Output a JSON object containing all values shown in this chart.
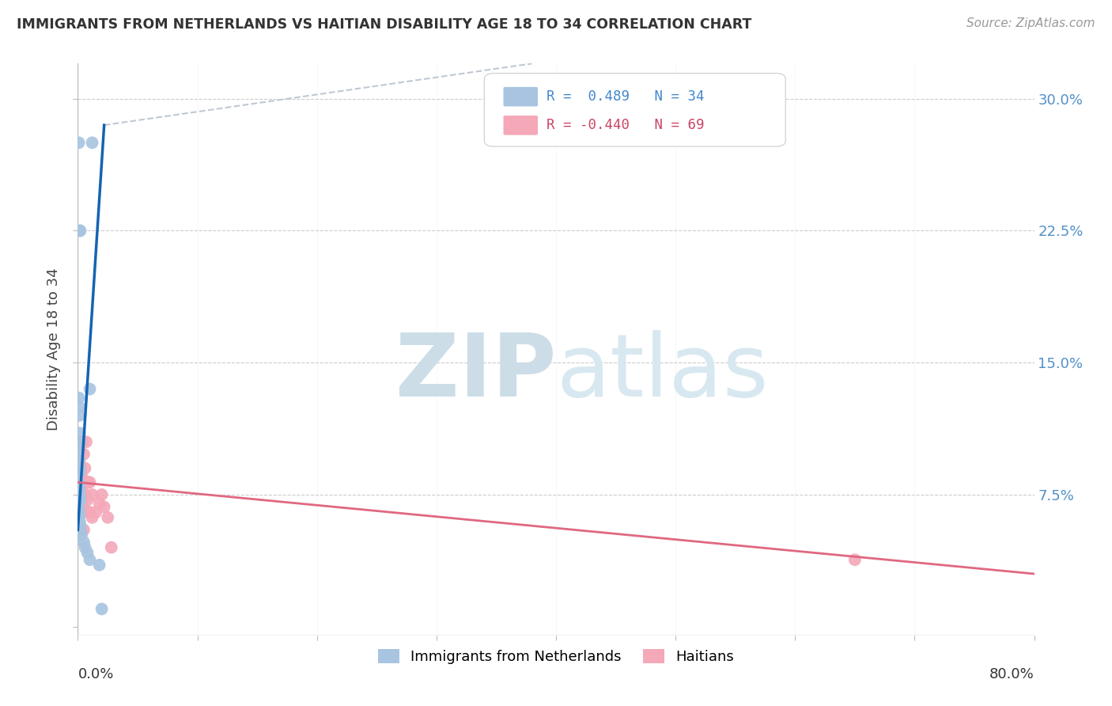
{
  "title": "IMMIGRANTS FROM NETHERLANDS VS HAITIAN DISABILITY AGE 18 TO 34 CORRELATION CHART",
  "source": "Source: ZipAtlas.com",
  "ylabel": "Disability Age 18 to 34",
  "xlim": [
    0.0,
    0.8
  ],
  "ylim": [
    -0.005,
    0.32
  ],
  "blue_scatter_color": "#a8c4e0",
  "pink_scatter_color": "#f4a8b8",
  "blue_line_color": "#1464b4",
  "pink_line_color": "#e06880",
  "dash_line_color": "#c0c8d4",
  "background_color": "#ffffff",
  "watermark_color": "#dce8f0",
  "blue_points": [
    [
      0.0008,
      0.275
    ],
    [
      0.0015,
      0.225
    ],
    [
      0.002,
      0.225
    ],
    [
      0.012,
      0.275
    ],
    [
      0.01,
      0.135
    ],
    [
      0.0008,
      0.13
    ],
    [
      0.001,
      0.125
    ],
    [
      0.0012,
      0.12
    ],
    [
      0.0015,
      0.11
    ],
    [
      0.0018,
      0.105
    ],
    [
      0.0008,
      0.1
    ],
    [
      0.001,
      0.095
    ],
    [
      0.0012,
      0.09
    ],
    [
      0.0015,
      0.088
    ],
    [
      0.0008,
      0.082
    ],
    [
      0.001,
      0.08
    ],
    [
      0.0012,
      0.078
    ],
    [
      0.0015,
      0.075
    ],
    [
      0.0018,
      0.073
    ],
    [
      0.002,
      0.072
    ],
    [
      0.0008,
      0.068
    ],
    [
      0.001,
      0.065
    ],
    [
      0.0012,
      0.063
    ],
    [
      0.0015,
      0.06
    ],
    [
      0.0018,
      0.058
    ],
    [
      0.002,
      0.056
    ],
    [
      0.0025,
      0.054
    ],
    [
      0.003,
      0.052
    ],
    [
      0.005,
      0.048
    ],
    [
      0.006,
      0.045
    ],
    [
      0.008,
      0.042
    ],
    [
      0.01,
      0.038
    ],
    [
      0.018,
      0.035
    ],
    [
      0.02,
      0.01
    ]
  ],
  "pink_points": [
    [
      0.0008,
      0.092
    ],
    [
      0.0008,
      0.085
    ],
    [
      0.0008,
      0.08
    ],
    [
      0.001,
      0.095
    ],
    [
      0.001,
      0.088
    ],
    [
      0.001,
      0.082
    ],
    [
      0.001,
      0.078
    ],
    [
      0.0012,
      0.09
    ],
    [
      0.0012,
      0.085
    ],
    [
      0.0012,
      0.082
    ],
    [
      0.0012,
      0.078
    ],
    [
      0.0015,
      0.105
    ],
    [
      0.0015,
      0.095
    ],
    [
      0.0015,
      0.088
    ],
    [
      0.0015,
      0.082
    ],
    [
      0.0015,
      0.078
    ],
    [
      0.0018,
      0.1
    ],
    [
      0.0018,
      0.092
    ],
    [
      0.0018,
      0.085
    ],
    [
      0.0018,
      0.082
    ],
    [
      0.0018,
      0.078
    ],
    [
      0.0018,
      0.075
    ],
    [
      0.0018,
      0.072
    ],
    [
      0.002,
      0.09
    ],
    [
      0.002,
      0.085
    ],
    [
      0.002,
      0.08
    ],
    [
      0.002,
      0.078
    ],
    [
      0.002,
      0.075
    ],
    [
      0.0025,
      0.088
    ],
    [
      0.0025,
      0.082
    ],
    [
      0.0025,
      0.078
    ],
    [
      0.0025,
      0.085
    ],
    [
      0.0025,
      0.08
    ],
    [
      0.0025,
      0.075
    ],
    [
      0.003,
      0.082
    ],
    [
      0.003,
      0.078
    ],
    [
      0.0035,
      0.105
    ],
    [
      0.0035,
      0.085
    ],
    [
      0.0035,
      0.078
    ],
    [
      0.0035,
      0.072
    ],
    [
      0.004,
      0.105
    ],
    [
      0.004,
      0.082
    ],
    [
      0.004,
      0.075
    ],
    [
      0.004,
      0.068
    ],
    [
      0.005,
      0.098
    ],
    [
      0.005,
      0.082
    ],
    [
      0.005,
      0.075
    ],
    [
      0.005,
      0.055
    ],
    [
      0.006,
      0.09
    ],
    [
      0.006,
      0.082
    ],
    [
      0.006,
      0.075
    ],
    [
      0.007,
      0.105
    ],
    [
      0.007,
      0.082
    ],
    [
      0.008,
      0.082
    ],
    [
      0.008,
      0.072
    ],
    [
      0.009,
      0.082
    ],
    [
      0.009,
      0.065
    ],
    [
      0.01,
      0.082
    ],
    [
      0.01,
      0.065
    ],
    [
      0.012,
      0.075
    ],
    [
      0.012,
      0.062
    ],
    [
      0.015,
      0.065
    ],
    [
      0.018,
      0.07
    ],
    [
      0.02,
      0.075
    ],
    [
      0.022,
      0.068
    ],
    [
      0.025,
      0.062
    ],
    [
      0.028,
      0.045
    ],
    [
      0.65,
      0.038
    ]
  ],
  "blue_line_x": [
    0.0,
    0.022
  ],
  "blue_line_y": [
    0.055,
    0.285
  ],
  "dash_line_x": [
    0.022,
    0.38
  ],
  "dash_line_y": [
    0.285,
    0.32
  ],
  "pink_line_x": [
    0.0,
    0.8
  ],
  "pink_line_y": [
    0.082,
    0.03
  ]
}
